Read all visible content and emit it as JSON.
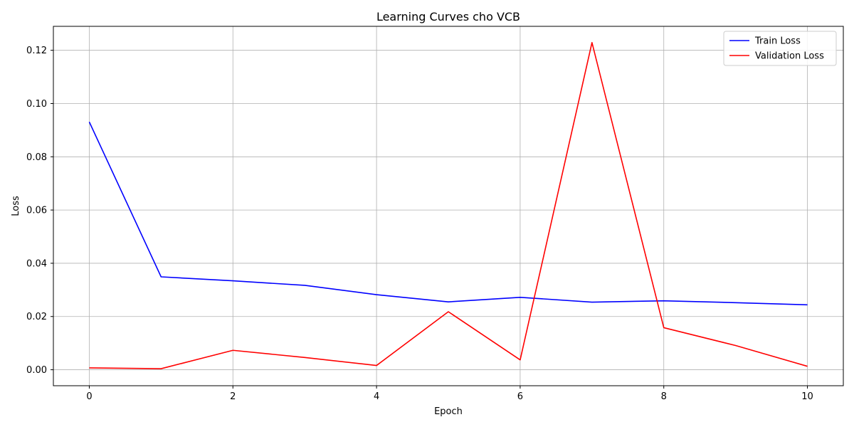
{
  "chart_data": {
    "type": "line",
    "title": "Learning Curves cho VCB",
    "xlabel": "Epoch",
    "ylabel": "Loss",
    "x": [
      0,
      1,
      2,
      3,
      4,
      5,
      6,
      7,
      8,
      9,
      10
    ],
    "xlim": [
      -0.5,
      10.5
    ],
    "ylim": [
      -0.006,
      0.129
    ],
    "xticks": [
      0,
      2,
      4,
      6,
      8,
      10
    ],
    "yticks": [
      0.0,
      0.02,
      0.04,
      0.06,
      0.08,
      0.1,
      0.12
    ],
    "xtick_labels": [
      "0",
      "2",
      "4",
      "6",
      "8",
      "10"
    ],
    "ytick_labels": [
      "0.00",
      "0.02",
      "0.04",
      "0.06",
      "0.08",
      "0.10",
      "0.12"
    ],
    "grid": true,
    "legend_position": "top-right",
    "series": [
      {
        "name": "Train Loss",
        "color": "#0000ff",
        "values": [
          0.0931,
          0.0349,
          0.0334,
          0.0317,
          0.0282,
          0.0255,
          0.0272,
          0.0254,
          0.0259,
          0.0252,
          0.0244
        ]
      },
      {
        "name": "Validation Loss",
        "color": "#ff0000",
        "values": [
          0.0007,
          0.0004,
          0.0073,
          0.0046,
          0.0016,
          0.0218,
          0.0037,
          0.1229,
          0.0158,
          0.0091,
          0.0013
        ]
      }
    ]
  }
}
